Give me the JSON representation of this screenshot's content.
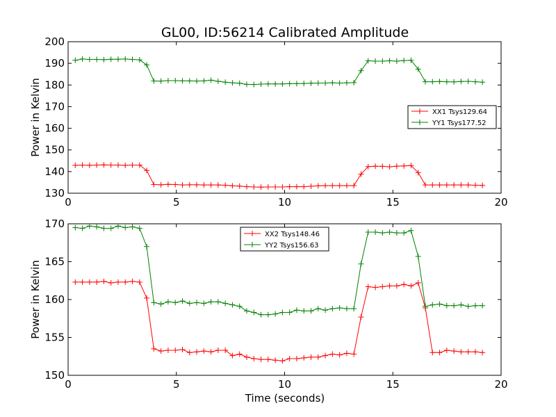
{
  "chart_data": [
    {
      "type": "line",
      "title": "GL00, ID:56214 Calibrated Amplitude",
      "xlabel": "",
      "ylabel": "Power in Kelvin",
      "xlim": [
        0,
        20
      ],
      "ylim": [
        130,
        200
      ],
      "xticks": [
        0,
        5,
        10,
        15,
        20
      ],
      "yticks": [
        130,
        140,
        150,
        160,
        170,
        180,
        190,
        200
      ],
      "grid": false,
      "legend_position": "right",
      "x": [
        0.33,
        0.66,
        0.99,
        1.32,
        1.65,
        1.98,
        2.31,
        2.64,
        2.97,
        3.3,
        3.63,
        3.96,
        4.29,
        4.62,
        4.95,
        5.28,
        5.61,
        5.94,
        6.27,
        6.6,
        6.93,
        7.26,
        7.59,
        7.92,
        8.25,
        8.58,
        8.91,
        9.24,
        9.57,
        9.9,
        10.23,
        10.56,
        10.89,
        11.22,
        11.55,
        11.88,
        12.21,
        12.54,
        12.87,
        13.2,
        13.53,
        13.86,
        14.19,
        14.52,
        14.85,
        15.18,
        15.51,
        15.84,
        16.17,
        16.5,
        16.83,
        17.16,
        17.49,
        17.82,
        18.15,
        18.48,
        18.81,
        19.14
      ],
      "series": [
        {
          "name": "XX1 Tsys129.64",
          "color": "#ff0000",
          "values": [
            142.9,
            143.0,
            142.9,
            143.0,
            143.1,
            143.0,
            143.0,
            142.9,
            143.0,
            143.0,
            140.5,
            134.0,
            133.9,
            134.1,
            134.0,
            133.8,
            133.9,
            133.9,
            133.8,
            133.8,
            133.8,
            133.7,
            133.4,
            133.3,
            133.0,
            132.9,
            132.8,
            132.9,
            132.9,
            132.9,
            133.0,
            133.0,
            133.0,
            133.2,
            133.4,
            133.5,
            133.5,
            133.5,
            133.5,
            133.5,
            138.8,
            142.3,
            142.5,
            142.4,
            142.2,
            142.5,
            142.6,
            142.8,
            139.5,
            133.8,
            133.8,
            133.8,
            133.8,
            133.8,
            133.8,
            133.8,
            133.7,
            133.6
          ]
        },
        {
          "name": "YY1 Tsys177.52",
          "color": "#008000",
          "values": [
            191.4,
            192.0,
            191.8,
            191.8,
            191.7,
            191.9,
            191.9,
            192.0,
            191.8,
            191.6,
            189.3,
            181.8,
            181.8,
            182.0,
            182.0,
            181.9,
            181.9,
            181.8,
            181.9,
            182.2,
            181.7,
            181.3,
            181.0,
            180.8,
            180.3,
            180.2,
            180.4,
            180.5,
            180.5,
            180.5,
            180.6,
            180.6,
            180.7,
            180.8,
            180.9,
            180.9,
            181.0,
            180.9,
            181.0,
            181.1,
            186.6,
            191.2,
            191.0,
            191.0,
            191.2,
            191.0,
            191.3,
            191.4,
            187.3,
            181.5,
            181.5,
            181.6,
            181.5,
            181.4,
            181.6,
            181.7,
            181.5,
            181.3
          ]
        }
      ]
    },
    {
      "type": "line",
      "title": "",
      "xlabel": "Time (seconds)",
      "ylabel": "Power in Kelvin",
      "xlim": [
        0,
        20
      ],
      "ylim": [
        150,
        170
      ],
      "xticks": [
        0,
        5,
        10,
        15,
        20
      ],
      "yticks": [
        150,
        155,
        160,
        165,
        170
      ],
      "grid": false,
      "legend_position": "top-center",
      "x": [
        0.33,
        0.66,
        0.99,
        1.32,
        1.65,
        1.98,
        2.31,
        2.64,
        2.97,
        3.3,
        3.63,
        3.96,
        4.29,
        4.62,
        4.95,
        5.28,
        5.61,
        5.94,
        6.27,
        6.6,
        6.93,
        7.26,
        7.59,
        7.92,
        8.25,
        8.58,
        8.91,
        9.24,
        9.57,
        9.9,
        10.23,
        10.56,
        10.89,
        11.22,
        11.55,
        11.88,
        12.21,
        12.54,
        12.87,
        13.2,
        13.53,
        13.86,
        14.19,
        14.52,
        14.85,
        15.18,
        15.51,
        15.84,
        16.17,
        16.5,
        16.83,
        17.16,
        17.49,
        17.82,
        18.15,
        18.48,
        18.81,
        19.14
      ],
      "series": [
        {
          "name": "XX2 Tsys148.46",
          "color": "#ff0000",
          "values": [
            162.3,
            162.3,
            162.3,
            162.3,
            162.4,
            162.2,
            162.3,
            162.3,
            162.4,
            162.3,
            160.2,
            153.5,
            153.2,
            153.3,
            153.3,
            153.4,
            153.0,
            153.1,
            153.2,
            153.1,
            153.3,
            153.3,
            152.6,
            152.8,
            152.4,
            152.2,
            152.1,
            152.1,
            152.0,
            151.9,
            152.2,
            152.2,
            152.3,
            152.4,
            152.4,
            152.6,
            152.8,
            152.7,
            152.9,
            152.8,
            157.7,
            161.7,
            161.6,
            161.7,
            161.8,
            161.8,
            162.0,
            161.8,
            162.2,
            158.9,
            153.0,
            153.0,
            153.3,
            153.2,
            153.1,
            153.1,
            153.1,
            153.0
          ]
        },
        {
          "name": "YY2 Tsys156.63",
          "color": "#008000",
          "values": [
            169.5,
            169.4,
            169.7,
            169.6,
            169.4,
            169.4,
            169.7,
            169.5,
            169.6,
            169.4,
            167.0,
            159.6,
            159.4,
            159.7,
            159.6,
            159.8,
            159.5,
            159.6,
            159.5,
            159.7,
            159.7,
            159.5,
            159.3,
            159.1,
            158.5,
            158.3,
            158.0,
            158.0,
            158.1,
            158.3,
            158.3,
            158.6,
            158.5,
            158.5,
            158.8,
            158.6,
            158.8,
            158.9,
            158.8,
            158.8,
            164.7,
            168.9,
            168.9,
            168.8,
            168.9,
            168.8,
            168.8,
            169.1,
            165.7,
            159.1,
            159.3,
            159.4,
            159.2,
            159.2,
            159.3,
            159.1,
            159.2,
            159.2
          ]
        }
      ]
    }
  ]
}
